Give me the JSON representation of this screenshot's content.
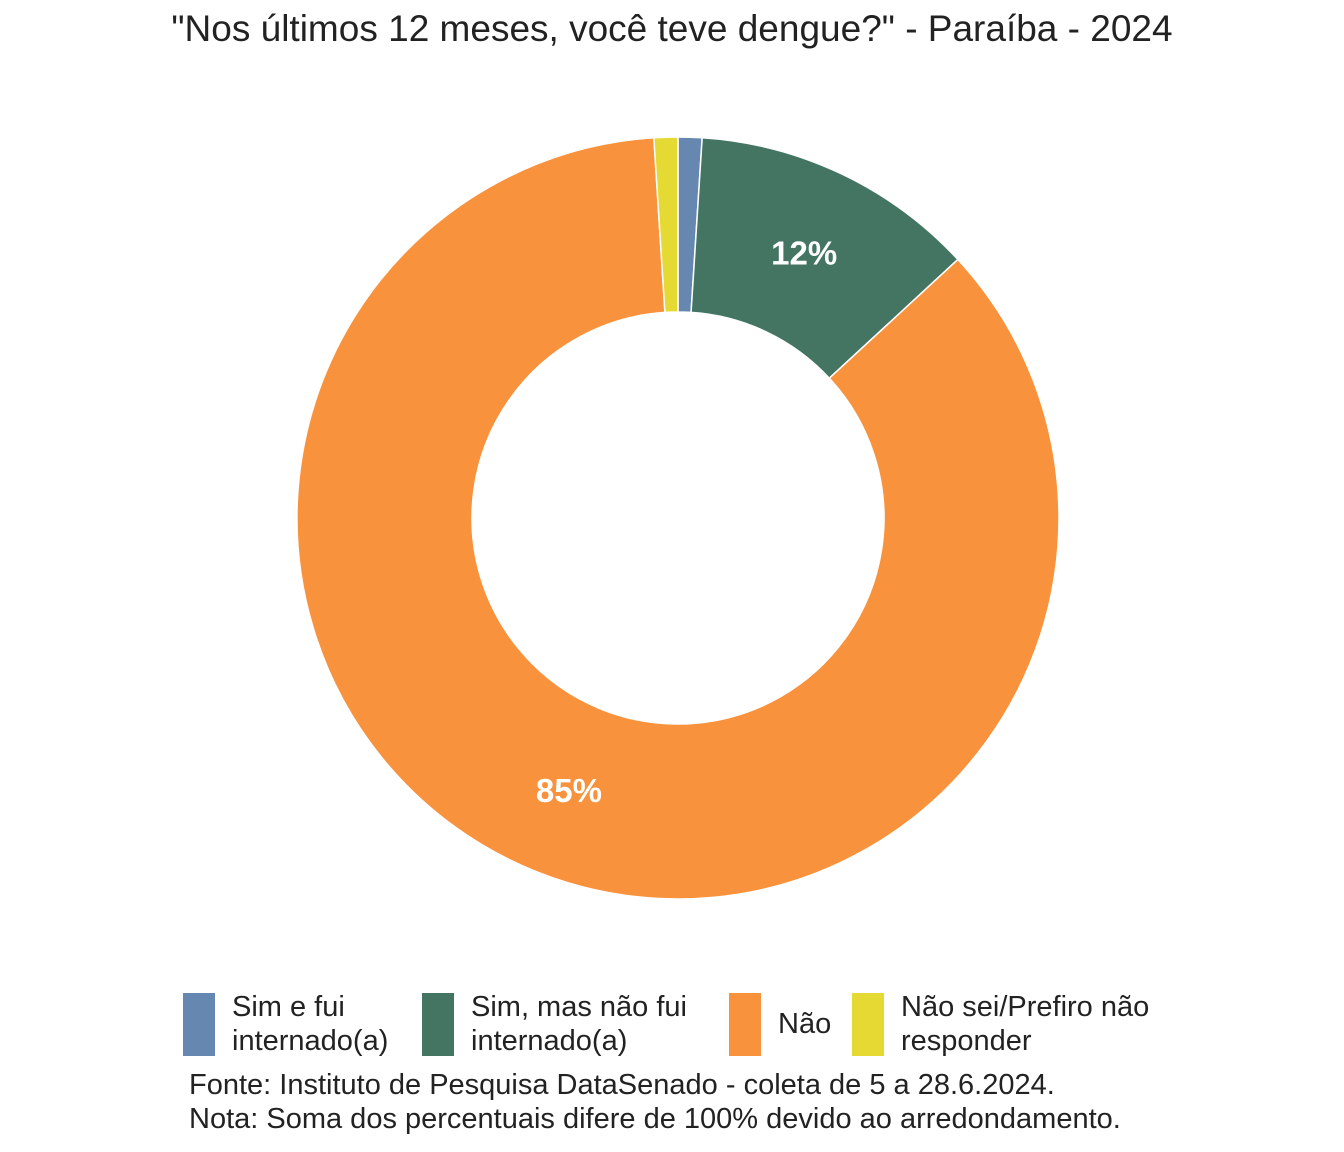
{
  "chart_data": {
    "type": "pie",
    "title": "\"Nos últimos 12 meses, você teve dengue?\" - Paraíba - 2024",
    "categories": [
      "Sim e fui internado(a)",
      "Sim, mas não fui internado(a)",
      "Não",
      "Não sei/Prefiro não responder"
    ],
    "values": [
      1,
      12,
      85,
      1
    ],
    "data_labels": [
      "",
      "12%",
      "85%",
      ""
    ],
    "colors": [
      "#6688B0",
      "#447563",
      "#F9923D",
      "#E5D934"
    ],
    "donut": true,
    "legend_position": "bottom"
  },
  "legend": {
    "items": [
      {
        "label": "Sim e fui internado(a)",
        "color": "#6688B0"
      },
      {
        "label": "Sim, mas não fui internado(a)",
        "color": "#447563"
      },
      {
        "label": "Não",
        "color": "#F9923D"
      },
      {
        "label": "Não sei/Prefiro não responder",
        "color": "#E5D934"
      }
    ]
  },
  "caption": {
    "source": "Fonte: Instituto de Pesquisa DataSenado - coleta de 5 a 28.6.2024.",
    "note": "Nota: Soma dos percentuais difere de 100% devido ao arredondamento."
  }
}
